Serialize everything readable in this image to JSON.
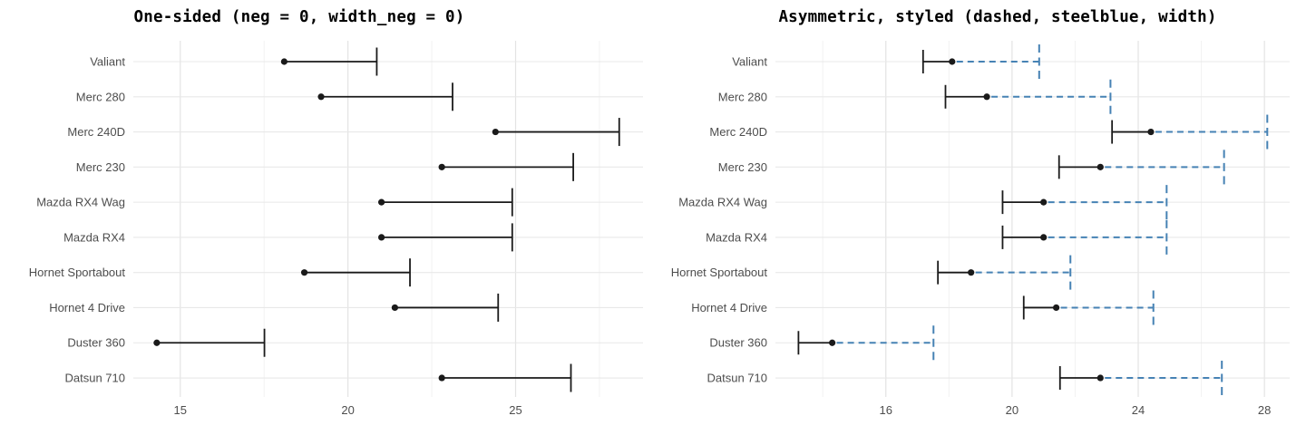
{
  "figure": {
    "background": "#FFFFFF",
    "description": "Two horizontal error-bar charts of mtcars mpg values"
  },
  "style": {
    "bar_color": "#1A1A1A",
    "steelblue": "#4682B4",
    "grid_major": "#E3E3E3",
    "grid_minor": "#F2F2F2",
    "row_grid": "#E8E8E8",
    "axis_text_color": "#4D4D4D",
    "title_color": "#000000"
  },
  "chart_data": [
    {
      "type": "scatter",
      "error_bars": "horizontal-one-sided",
      "title": "One-sided (neg = 0, width_neg = 0)",
      "orientation": "horizontal",
      "categories": [
        "Valiant",
        "Merc 280",
        "Merc 240D",
        "Merc 230",
        "Mazda RX4 Wag",
        "Mazda RX4",
        "Hornet Sportabout",
        "Hornet 4 Drive",
        "Duster 360",
        "Datsun 710"
      ],
      "values": [
        18.1,
        19.2,
        24.4,
        22.8,
        21.0,
        21.0,
        18.7,
        21.4,
        14.3,
        22.8
      ],
      "lower": [
        18.1,
        19.2,
        24.4,
        22.8,
        21.0,
        21.0,
        18.7,
        21.4,
        14.3,
        22.8
      ],
      "upper": [
        20.86,
        23.12,
        28.09,
        26.72,
        24.9,
        24.9,
        21.85,
        24.48,
        17.51,
        26.65
      ],
      "xticks": [
        15,
        20,
        25
      ],
      "xminor_ticks": [
        17.5,
        22.5,
        27.5
      ],
      "xlim": [
        13.6,
        28.8
      ],
      "grid": true,
      "legend": "none",
      "negative_side": "none",
      "positive_side": "solid",
      "positive_color": "#1A1A1A"
    },
    {
      "type": "scatter",
      "error_bars": "horizontal-asymmetric",
      "title": "Asymmetric, styled (dashed, steelblue, width)",
      "orientation": "horizontal",
      "categories": [
        "Valiant",
        "Merc 280",
        "Merc 240D",
        "Merc 230",
        "Mazda RX4 Wag",
        "Mazda RX4",
        "Hornet Sportabout",
        "Hornet 4 Drive",
        "Duster 360",
        "Datsun 710"
      ],
      "values": [
        18.1,
        19.2,
        24.4,
        22.8,
        21.0,
        21.0,
        18.7,
        21.4,
        14.3,
        22.8
      ],
      "lower": [
        17.18,
        17.89,
        23.17,
        21.49,
        19.7,
        19.7,
        17.65,
        20.37,
        13.23,
        21.52
      ],
      "upper": [
        20.86,
        23.12,
        28.09,
        26.72,
        24.9,
        24.9,
        21.85,
        24.48,
        17.51,
        26.65
      ],
      "xticks": [
        16,
        20,
        24,
        28
      ],
      "xminor_ticks": [
        14,
        18,
        22,
        26
      ],
      "xlim": [
        12.5,
        28.8
      ],
      "grid": true,
      "legend": "none",
      "negative_side": "solid",
      "negative_color": "#1A1A1A",
      "positive_side": "dashed",
      "positive_color": "#4682B4"
    }
  ]
}
